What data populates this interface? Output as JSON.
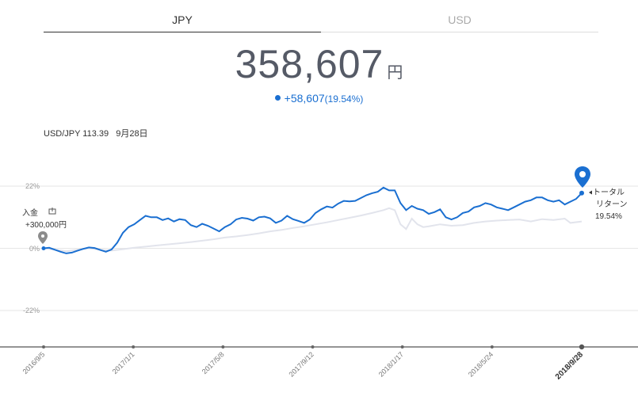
{
  "tabs": {
    "jpy": "JPY",
    "usd": "USD"
  },
  "total": {
    "value": "358,607",
    "unit": "円"
  },
  "change": {
    "amount": "+58,607",
    "percent": "(19.54%)"
  },
  "rate": {
    "label": "USD/JPY 113.39",
    "date": "9月28日"
  },
  "deposit": {
    "label": "入金",
    "icon": "deposit-icon",
    "amount": "+300,000円"
  },
  "total_return": {
    "line1": "トータル",
    "line2": "リターン",
    "value": "19.54%"
  },
  "colors": {
    "primary": "#1a6fd1",
    "benchmark": "#e2e4ec",
    "grid": "#e6e6e6",
    "axis": "#555555"
  },
  "chart_data": {
    "type": "line",
    "ylim": [
      -33,
      33
    ],
    "yticks": [
      22,
      0,
      -22
    ],
    "ytick_labels": [
      "22%",
      "0%",
      "-22%"
    ],
    "xticks": [
      "2016/9/5",
      "2017/1/1",
      "2017/5/8",
      "2017/9/12",
      "2018/1/17",
      "2018/5/24",
      "2018/9/28"
    ],
    "series": [
      {
        "values": [
          [
            0,
            0.0
          ],
          [
            1,
            0.2
          ],
          [
            2,
            -0.5
          ],
          [
            3,
            -1.2
          ],
          [
            4,
            -1.8
          ],
          [
            5,
            -1.5
          ],
          [
            6,
            -0.8
          ],
          [
            7,
            -0.2
          ],
          [
            8,
            0.3
          ],
          [
            9,
            0.1
          ],
          [
            10,
            -0.6
          ],
          [
            11,
            -1.2
          ],
          [
            12,
            -0.4
          ],
          [
            13,
            2.0
          ],
          [
            14,
            5.5
          ],
          [
            15,
            7.5
          ],
          [
            16,
            8.5
          ],
          [
            17,
            10.0
          ],
          [
            18,
            11.5
          ],
          [
            19,
            11.0
          ],
          [
            20,
            11.0
          ],
          [
            21,
            10.0
          ],
          [
            22,
            10.6
          ],
          [
            23,
            9.5
          ],
          [
            24,
            10.3
          ],
          [
            25,
            10.0
          ],
          [
            26,
            8.2
          ],
          [
            27,
            7.5
          ],
          [
            28,
            8.7
          ],
          [
            29,
            8.0
          ],
          [
            30,
            7.0
          ],
          [
            31,
            6.0
          ],
          [
            32,
            7.5
          ],
          [
            33,
            8.5
          ],
          [
            34,
            10.2
          ],
          [
            35,
            10.8
          ],
          [
            36,
            10.5
          ],
          [
            37,
            9.8
          ],
          [
            38,
            11.0
          ],
          [
            39,
            11.2
          ],
          [
            40,
            10.6
          ],
          [
            41,
            9.0
          ],
          [
            42,
            9.8
          ],
          [
            43,
            11.5
          ],
          [
            44,
            10.3
          ],
          [
            45,
            9.7
          ],
          [
            46,
            9.0
          ],
          [
            47,
            10.2
          ],
          [
            48,
            12.5
          ],
          [
            49,
            13.8
          ],
          [
            50,
            14.8
          ],
          [
            51,
            14.4
          ],
          [
            52,
            15.8
          ],
          [
            53,
            16.8
          ],
          [
            54,
            16.6
          ],
          [
            55,
            16.8
          ],
          [
            56,
            17.8
          ],
          [
            57,
            18.8
          ],
          [
            58,
            19.5
          ],
          [
            59,
            20.0
          ],
          [
            60,
            21.5
          ],
          [
            61,
            20.5
          ],
          [
            62,
            20.5
          ],
          [
            63,
            16.0
          ],
          [
            64,
            13.5
          ],
          [
            65,
            15.0
          ],
          [
            66,
            14.0
          ],
          [
            67,
            13.5
          ],
          [
            68,
            12.2
          ],
          [
            69,
            12.8
          ],
          [
            70,
            13.8
          ],
          [
            71,
            11.0
          ],
          [
            72,
            10.2
          ],
          [
            73,
            11.0
          ],
          [
            74,
            12.5
          ],
          [
            75,
            13.0
          ],
          [
            76,
            14.5
          ],
          [
            77,
            15.0
          ],
          [
            78,
            16.0
          ],
          [
            79,
            15.5
          ],
          [
            80,
            14.5
          ],
          [
            81,
            14.0
          ],
          [
            82,
            13.5
          ],
          [
            83,
            14.5
          ],
          [
            84,
            15.5
          ],
          [
            85,
            16.5
          ],
          [
            86,
            17.0
          ],
          [
            87,
            18.0
          ],
          [
            88,
            18.0
          ],
          [
            89,
            17.0
          ],
          [
            90,
            16.5
          ],
          [
            91,
            17.0
          ],
          [
            92,
            15.5
          ],
          [
            93,
            16.5
          ],
          [
            94,
            17.5
          ],
          [
            95,
            19.54
          ]
        ]
      },
      {
        "values": [
          [
            0,
            0.0
          ],
          [
            2,
            -0.5
          ],
          [
            4,
            -1.0
          ],
          [
            6,
            -0.5
          ],
          [
            8,
            0.0
          ],
          [
            10,
            -0.5
          ],
          [
            12,
            -0.8
          ],
          [
            14,
            -0.3
          ],
          [
            16,
            0.2
          ],
          [
            18,
            0.6
          ],
          [
            20,
            1.0
          ],
          [
            22,
            1.4
          ],
          [
            24,
            1.8
          ],
          [
            26,
            2.2
          ],
          [
            28,
            2.7
          ],
          [
            30,
            3.2
          ],
          [
            32,
            3.8
          ],
          [
            34,
            4.2
          ],
          [
            36,
            4.7
          ],
          [
            38,
            5.3
          ],
          [
            40,
            6.0
          ],
          [
            42,
            6.5
          ],
          [
            44,
            7.2
          ],
          [
            46,
            7.8
          ],
          [
            48,
            8.5
          ],
          [
            50,
            9.2
          ],
          [
            52,
            10.0
          ],
          [
            54,
            10.8
          ],
          [
            56,
            11.6
          ],
          [
            58,
            12.5
          ],
          [
            60,
            13.5
          ],
          [
            61,
            14.2
          ],
          [
            62,
            13.5
          ],
          [
            63,
            8.5
          ],
          [
            64,
            6.8
          ],
          [
            65,
            10.5
          ],
          [
            66,
            8.5
          ],
          [
            67,
            7.5
          ],
          [
            68,
            7.8
          ],
          [
            70,
            8.5
          ],
          [
            72,
            8.0
          ],
          [
            74,
            8.2
          ],
          [
            76,
            9.0
          ],
          [
            78,
            9.5
          ],
          [
            80,
            9.8
          ],
          [
            82,
            10.0
          ],
          [
            84,
            10.2
          ],
          [
            86,
            9.5
          ],
          [
            88,
            10.3
          ],
          [
            90,
            10.0
          ],
          [
            92,
            10.5
          ],
          [
            93,
            9.0
          ],
          [
            95,
            9.5
          ]
        ]
      }
    ]
  }
}
